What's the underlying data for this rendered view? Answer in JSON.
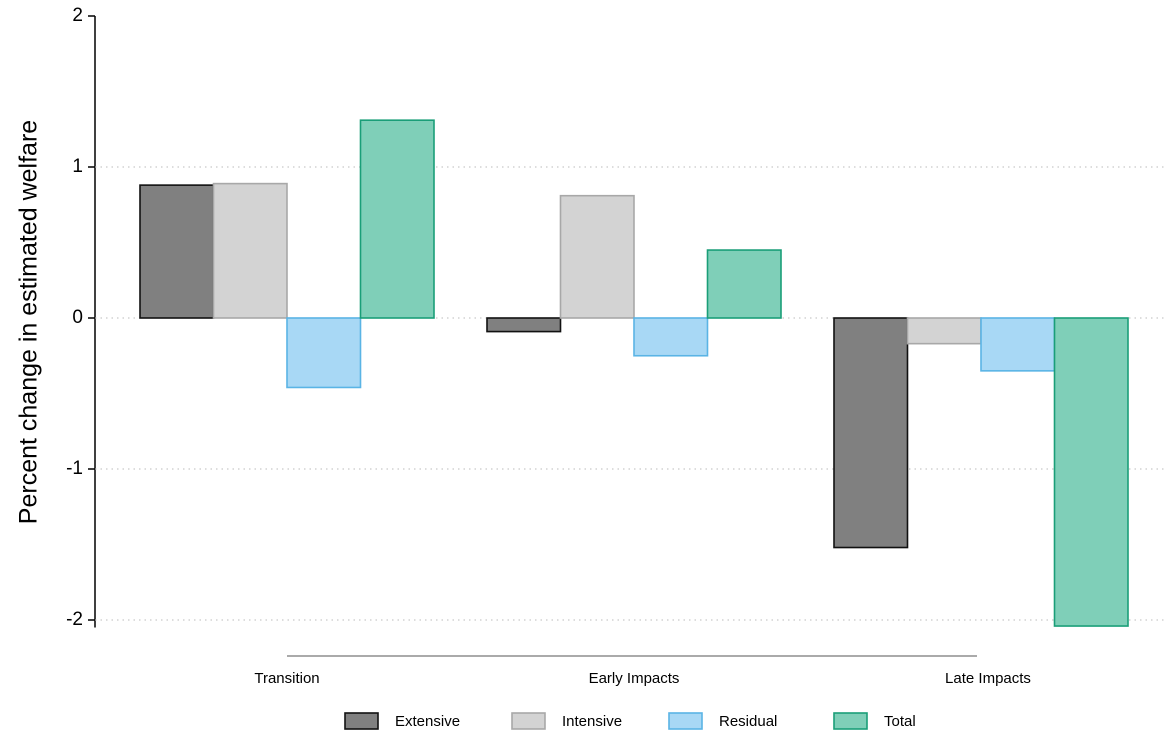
{
  "chart_data": {
    "type": "bar",
    "y_label": "Percent change in estimated welfare",
    "categories": [
      "Transition",
      "Early Impacts",
      "Late Impacts"
    ],
    "series": [
      {
        "name": "Extensive",
        "color": "#808080",
        "edge": "#111111",
        "values": [
          0.88,
          -0.09,
          -1.52
        ]
      },
      {
        "name": "Intensive",
        "color": "#d3d3d3",
        "edge": "#a8a8a8",
        "values": [
          0.89,
          0.81,
          -0.17
        ]
      },
      {
        "name": "Residual",
        "color": "#a8d8f5",
        "edge": "#5ab4e5",
        "values": [
          -0.46,
          -0.25,
          -0.35
        ]
      },
      {
        "name": "Total",
        "color": "#7fcfb8",
        "edge": "#1a9e78",
        "values": [
          1.31,
          0.45,
          -2.04
        ]
      }
    ],
    "ylim": [
      -2.05,
      2
    ],
    "yticks": [
      -2,
      -1,
      0,
      1,
      2
    ],
    "grid": true,
    "legend": "bottom"
  }
}
